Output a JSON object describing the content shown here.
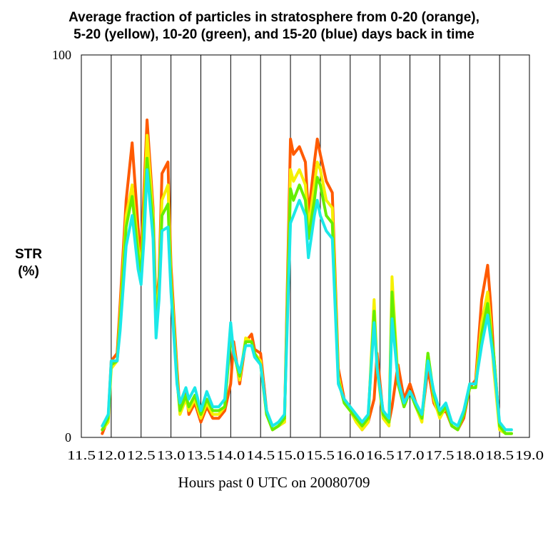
{
  "chart_data": {
    "type": "line",
    "title_lines": [
      "Average fraction of particles in stratosphere from 0-20 (orange),",
      "5-20 (yellow), 10-20 (green), and 15-20 (blue) days back in time"
    ],
    "xlabel": "Hours past 0 UTC on 20080709",
    "ylabel_lines": [
      "STR",
      "(%)"
    ],
    "xlim": [
      11.5,
      19.0
    ],
    "ylim": [
      0,
      100
    ],
    "x_ticks": [
      "11.5",
      "12.0",
      "12.5",
      "13.0",
      "13.5",
      "14.0",
      "14.5",
      "15.0",
      "15.5",
      "16.0",
      "16.5",
      "17.0",
      "17.5",
      "18.0",
      "18.5",
      "19.0"
    ],
    "y_ticks": [
      "0",
      "100"
    ],
    "vertical_gridlines_at": [
      12.0,
      12.5,
      13.0,
      13.5,
      14.0,
      14.5,
      15.0,
      15.5,
      16.0,
      16.5,
      17.0,
      17.5,
      18.0,
      18.5
    ],
    "x": [
      11.85,
      11.95,
      12.0,
      12.1,
      12.15,
      12.25,
      12.35,
      12.45,
      12.5,
      12.55,
      12.6,
      12.7,
      12.75,
      12.8,
      12.85,
      12.95,
      13.0,
      13.1,
      13.15,
      13.25,
      13.3,
      13.4,
      13.5,
      13.6,
      13.7,
      13.8,
      13.9,
      14.0,
      14.05,
      14.15,
      14.25,
      14.35,
      14.4,
      14.5,
      14.6,
      14.7,
      14.8,
      14.9,
      15.0,
      15.05,
      15.15,
      15.25,
      15.3,
      15.4,
      15.45,
      15.5,
      15.6,
      15.7,
      15.8,
      15.9,
      16.0,
      16.1,
      16.2,
      16.3,
      16.4,
      16.45,
      16.55,
      16.65,
      16.7,
      16.8,
      16.9,
      17.0,
      17.1,
      17.2,
      17.3,
      17.4,
      17.5,
      17.6,
      17.7,
      17.8,
      17.9,
      18.0,
      18.1,
      18.2,
      18.3,
      18.35,
      18.4,
      18.5,
      18.6,
      18.7
    ],
    "series": [
      {
        "name": "0-20 days (orange)",
        "color": "#ff5a00",
        "values": [
          1,
          5,
          20,
          22,
          35,
          62,
          77,
          55,
          47,
          65,
          83,
          60,
          33,
          42,
          69,
          72,
          45,
          18,
          7,
          12,
          6,
          9,
          4,
          8,
          5,
          5,
          7,
          14,
          25,
          14,
          25,
          27,
          23,
          22,
          7,
          2,
          3,
          4,
          78,
          74,
          76,
          72,
          58,
          72,
          78,
          74,
          67,
          64,
          18,
          10,
          8,
          5,
          2,
          4,
          10,
          22,
          6,
          4,
          8,
          19,
          10,
          14,
          9,
          5,
          18,
          9,
          6,
          7,
          3,
          2,
          5,
          13,
          15,
          36,
          45,
          35,
          22,
          3,
          1,
          1
        ]
      },
      {
        "name": "5-20 days (yellow)",
        "color": "#f5f000",
        "values": [
          2,
          4,
          18,
          20,
          32,
          58,
          66,
          50,
          44,
          60,
          79,
          58,
          30,
          40,
          62,
          66,
          42,
          16,
          6,
          10,
          7,
          10,
          5,
          9,
          6,
          6,
          8,
          28,
          23,
          15,
          26,
          25,
          22,
          20,
          6,
          2,
          3,
          4,
          70,
          67,
          70,
          66,
          55,
          66,
          72,
          70,
          62,
          60,
          16,
          9,
          7,
          4,
          2,
          4,
          36,
          18,
          5,
          3,
          42,
          15,
          8,
          12,
          8,
          4,
          22,
          10,
          5,
          8,
          3,
          2,
          6,
          14,
          14,
          30,
          38,
          30,
          18,
          2,
          1,
          1
        ]
      },
      {
        "name": "10-20 days (green)",
        "color": "#66ee00",
        "values": [
          2,
          5,
          19,
          20,
          30,
          55,
          63,
          48,
          42,
          57,
          73,
          56,
          28,
          38,
          58,
          61,
          40,
          15,
          7,
          11,
          8,
          11,
          6,
          10,
          7,
          7,
          8,
          27,
          22,
          16,
          25,
          25,
          22,
          19,
          6,
          2,
          3,
          5,
          65,
          62,
          66,
          62,
          52,
          62,
          68,
          66,
          58,
          56,
          15,
          9,
          7,
          5,
          3,
          5,
          33,
          18,
          6,
          4,
          38,
          14,
          8,
          12,
          8,
          5,
          22,
          11,
          6,
          8,
          3,
          2,
          6,
          13,
          13,
          27,
          35,
          28,
          22,
          3,
          1,
          1
        ]
      },
      {
        "name": "15-20 days (blue)",
        "color": "#1be8e8",
        "values": [
          3,
          6,
          20,
          20,
          28,
          50,
          58,
          44,
          40,
          52,
          70,
          52,
          26,
          36,
          54,
          55,
          38,
          14,
          9,
          13,
          10,
          13,
          7,
          12,
          8,
          8,
          10,
          30,
          22,
          17,
          24,
          24,
          21,
          19,
          7,
          3,
          4,
          6,
          56,
          58,
          62,
          58,
          47,
          58,
          62,
          58,
          54,
          52,
          14,
          10,
          8,
          6,
          4,
          6,
          30,
          18,
          7,
          5,
          31,
          15,
          9,
          12,
          9,
          6,
          20,
          12,
          7,
          9,
          4,
          3,
          7,
          14,
          14,
          24,
          32,
          26,
          20,
          4,
          2,
          2
        ]
      }
    ]
  }
}
